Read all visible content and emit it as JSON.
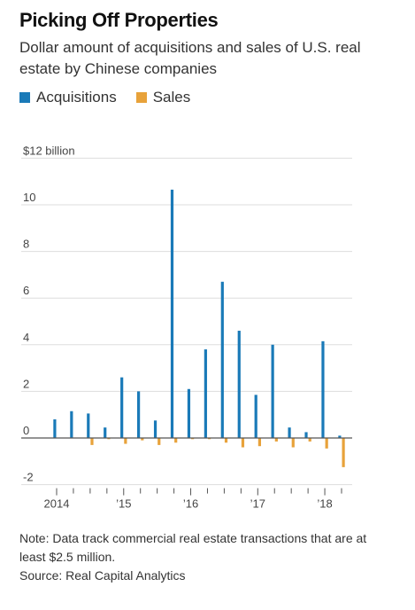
{
  "header": {
    "title": "Picking Off Properties",
    "subtitle": "Dollar amount of acquisitions and sales of U.S. real estate by Chinese companies"
  },
  "notes": {
    "note": "Note: Data track commercial real estate transactions that are at least $2.5 million.",
    "source": "Source: Real Capital Analytics"
  },
  "colors": {
    "acquisitions": "#1a7ab8",
    "sales": "#e8a23a",
    "grid": "#dddddd",
    "zero_line": "#555555",
    "tick_text": "#444444"
  },
  "chart_data": {
    "type": "bar",
    "title": "Picking Off Properties",
    "y_unit_label": "$12 billion",
    "ylim": [
      -2,
      12
    ],
    "y_ticks": [
      -2,
      0,
      2,
      4,
      6,
      8,
      10,
      12
    ],
    "y_tick_labels": [
      "-2",
      "0",
      "2",
      "4",
      "6",
      "8",
      "10",
      "$12 billion"
    ],
    "grid": true,
    "legend_position": "top-left",
    "categories": [
      "2014 Q1",
      "2014 Q2",
      "2014 Q3",
      "2014 Q4",
      "2015 Q1",
      "2015 Q2",
      "2015 Q3",
      "2015 Q4",
      "2016 Q1",
      "2016 Q2",
      "2016 Q3",
      "2016 Q4",
      "2017 Q1",
      "2017 Q2",
      "2017 Q3",
      "2017 Q4",
      "2018 Q1",
      "2018 Q2"
    ],
    "x_tick_labels": [
      {
        "label": "2014",
        "category": "2014 Q1"
      },
      {
        "label": "’15",
        "category": "2015 Q1"
      },
      {
        "label": "’16",
        "category": "2016 Q1"
      },
      {
        "label": "’17",
        "category": "2017 Q1"
      },
      {
        "label": "’18",
        "category": "2018 Q1"
      }
    ],
    "series": [
      {
        "name": "Acquisitions",
        "values": [
          0.8,
          1.15,
          1.05,
          0.45,
          2.6,
          2.0,
          0.75,
          10.65,
          2.1,
          3.8,
          6.7,
          4.6,
          1.85,
          4.0,
          0.45,
          0.25,
          4.15,
          0.1
        ]
      },
      {
        "name": "Sales",
        "values": [
          0.0,
          0.0,
          -0.3,
          -0.05,
          -0.25,
          -0.1,
          -0.3,
          -0.2,
          -0.05,
          -0.05,
          -0.2,
          -0.4,
          -0.35,
          -0.15,
          -0.4,
          -0.15,
          -0.45,
          -1.25
        ]
      }
    ]
  }
}
